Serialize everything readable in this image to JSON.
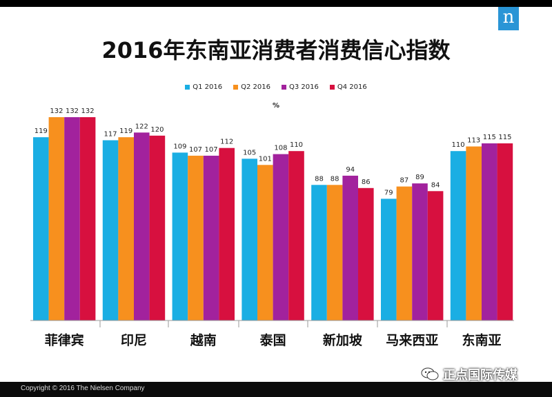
{
  "brand_logo": "n",
  "watermark_text": "正点国际传媒",
  "copyright": "Copyright © 2016 The Nielsen Company",
  "chart_data": {
    "type": "bar",
    "title": "2016年东南亚消费者消费信心指数",
    "unit_label": "%",
    "categories": [
      "菲律宾",
      "印尼",
      "越南",
      "泰国",
      "新加坡",
      "马来西亚",
      "东南亚"
    ],
    "series": [
      {
        "name": "Q1 2016",
        "color": "#1aaee3",
        "values": [
          119,
          117,
          109,
          105,
          88,
          79,
          110
        ]
      },
      {
        "name": "Q2 2016",
        "color": "#f7901e",
        "values": [
          132,
          119,
          107,
          101,
          88,
          87,
          113
        ]
      },
      {
        "name": "Q3 2016",
        "color": "#a2229d",
        "values": [
          132,
          122,
          107,
          108,
          94,
          89,
          115
        ]
      },
      {
        "name": "Q4 2016",
        "color": "#d7103f",
        "values": [
          132,
          120,
          112,
          110,
          86,
          84,
          115
        ]
      }
    ],
    "ylim": [
      0,
      132
    ],
    "grid": false,
    "legend": "top-center"
  }
}
